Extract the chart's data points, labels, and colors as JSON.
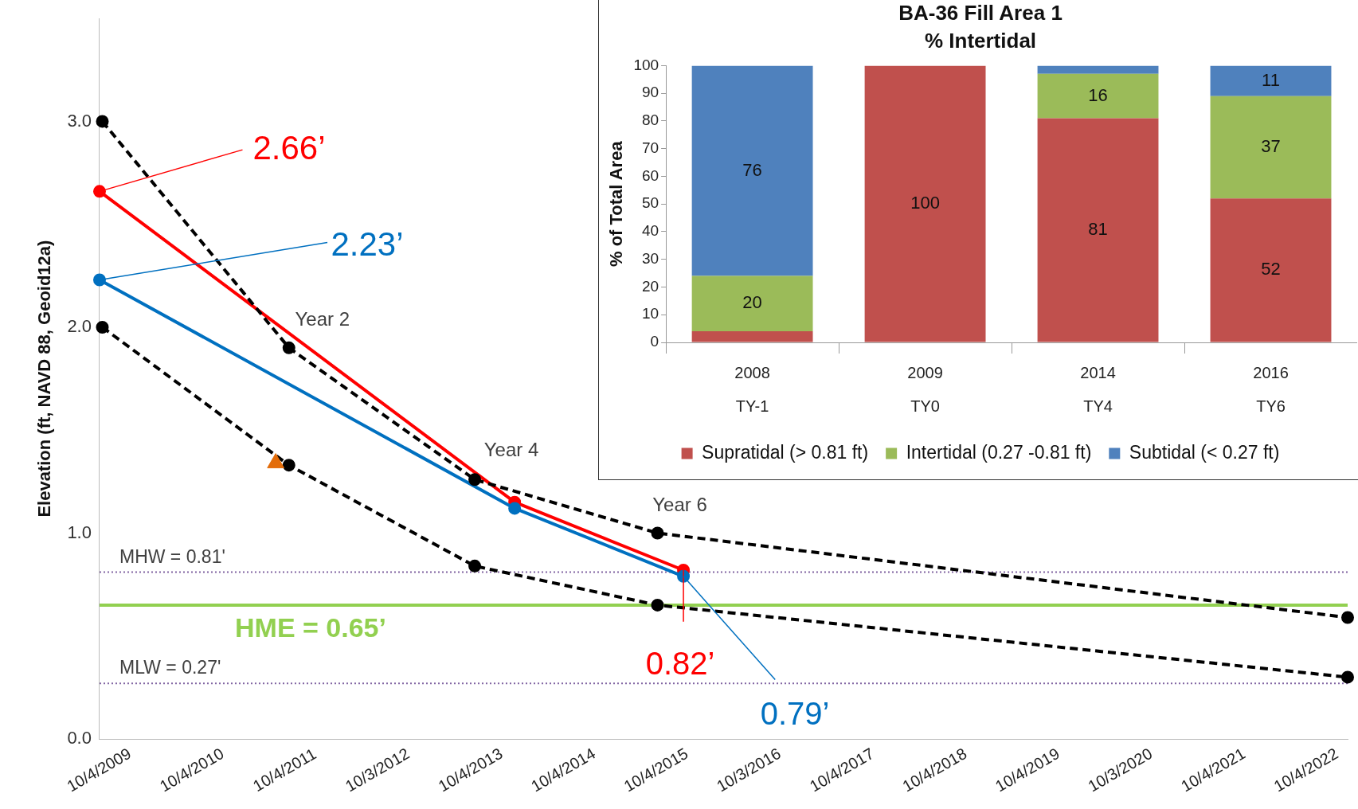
{
  "chart_data": [
    {
      "type": "line",
      "ylabel": "Elevation (ft, NAVD 88, Geoid12a)",
      "xlim": [
        "2009-10-04",
        "2023-03-15"
      ],
      "ylim": [
        0,
        3.5
      ],
      "xticks": [
        {
          "value": "2009-10-04",
          "label": "10/4/2009"
        },
        {
          "value": "2010-10-04",
          "label": "10/4/2010"
        },
        {
          "value": "2011-10-04",
          "label": "10/4/2011"
        },
        {
          "value": "2012-10-03",
          "label": "10/3/2012"
        },
        {
          "value": "2013-10-04",
          "label": "10/4/2013"
        },
        {
          "value": "2014-10-04",
          "label": "10/4/2014"
        },
        {
          "value": "2015-10-04",
          "label": "10/4/2015"
        },
        {
          "value": "2016-10-03",
          "label": "10/3/2016"
        },
        {
          "value": "2017-10-04",
          "label": "10/4/2017"
        },
        {
          "value": "2018-10-04",
          "label": "10/4/2018"
        },
        {
          "value": "2019-10-04",
          "label": "10/4/2019"
        },
        {
          "value": "2020-10-03",
          "label": "10/3/2020"
        },
        {
          "value": "2021-10-04",
          "label": "10/4/2021"
        },
        {
          "value": "2022-10-04",
          "label": "10/4/2022"
        }
      ],
      "yticks": [
        {
          "value": 0,
          "label": "0.0"
        },
        {
          "value": 1,
          "label": "1.0"
        },
        {
          "value": 2,
          "label": "2.0"
        },
        {
          "value": 3,
          "label": "3.0"
        }
      ],
      "marker": "circle",
      "series": [
        {
          "type": "line",
          "color": "#000000",
          "line_style": "dashed",
          "x": [
            "2009-10-15",
            "2011-10-19",
            "2013-10-19",
            "2015-10-08",
            "2023-03-15"
          ],
          "values": [
            3.0,
            1.9,
            1.26,
            1.0,
            0.59
          ]
        },
        {
          "type": "line",
          "color": "#000000",
          "line_style": "dashed",
          "x": [
            "2009-10-15",
            "2011-10-19",
            "2013-10-19",
            "2015-10-08",
            "2023-03-15"
          ],
          "values": [
            2.0,
            1.33,
            0.84,
            0.65,
            0.3
          ]
        },
        {
          "type": "line",
          "color": "#0070c0",
          "x": [
            "2009-10-04",
            "2014-03-25",
            "2016-01-18"
          ],
          "values": [
            2.23,
            1.12,
            0.79
          ]
        },
        {
          "type": "line",
          "color": "#ff0000",
          "x": [
            "2009-10-04",
            "2014-03-25",
            "2016-01-18"
          ],
          "values": [
            2.66,
            1.15,
            0.82
          ]
        },
        {
          "type": "scatter",
          "color": "#e36c09",
          "marker": "triangle",
          "x": [
            "2011-08-28"
          ],
          "values": [
            1.34
          ]
        }
      ],
      "ref_lines": [
        {
          "axis": "y",
          "value": 0.81,
          "label": "MHW = 0.81'",
          "color": "#8064a2",
          "line_style": "dotted"
        },
        {
          "axis": "y",
          "value": 0.65,
          "label": "HME = 0.65’",
          "color": "#92d050",
          "line_style": "solid"
        },
        {
          "axis": "y",
          "value": 0.27,
          "label": "MLW = 0.27'",
          "color": "#8064a2",
          "line_style": "dotted"
        }
      ],
      "annotations": [
        {
          "text": "2.66’",
          "x": "2009-10-04",
          "y": 2.66
        },
        {
          "text": "2.23’",
          "x": "2009-10-04",
          "y": 2.23
        },
        {
          "text": "0.82’",
          "x": "2016-01-18",
          "y": 0.82
        },
        {
          "text": "0.79’",
          "x": "2016-01-18",
          "y": 0.79
        },
        {
          "text": "Year 2",
          "x": "2011-10-19",
          "y": 1.9
        },
        {
          "text": "Year 4",
          "x": "2013-10-19",
          "y": 1.26
        },
        {
          "text": "Year 6",
          "x": "2015-10-08",
          "y": 1.0
        }
      ]
    },
    {
      "type": "bar",
      "stacked": true,
      "title": "BA-36 Fill Area 1",
      "subtitle": "% Intertidal",
      "ylabel": "% of Total Area",
      "categories": [
        "2008\nTY-1",
        "2009\nTY0",
        "2014\nTY4",
        "2016\nTY6"
      ],
      "ylim": [
        0,
        100
      ],
      "yticks": [
        0,
        10,
        20,
        30,
        40,
        50,
        60,
        70,
        80,
        90,
        100
      ],
      "legend": "bottom",
      "series": [
        {
          "name": "Supratidal (> 0.81 ft)",
          "color": "#c0504d",
          "values": [
            4,
            100,
            81,
            52
          ],
          "value_labels": [
            null,
            "100",
            "81",
            "52"
          ]
        },
        {
          "name": "Intertidal (0.27 -0.81 ft)",
          "color": "#9bbb59",
          "values": [
            20,
            0,
            16,
            37
          ],
          "value_labels": [
            "20",
            null,
            "16",
            "37"
          ]
        },
        {
          "name": "Subtidal (< 0.27 ft)",
          "color": "#4f81bd",
          "values": [
            76,
            0,
            3,
            11
          ],
          "value_labels": [
            "76",
            null,
            null,
            "11"
          ]
        }
      ]
    }
  ]
}
